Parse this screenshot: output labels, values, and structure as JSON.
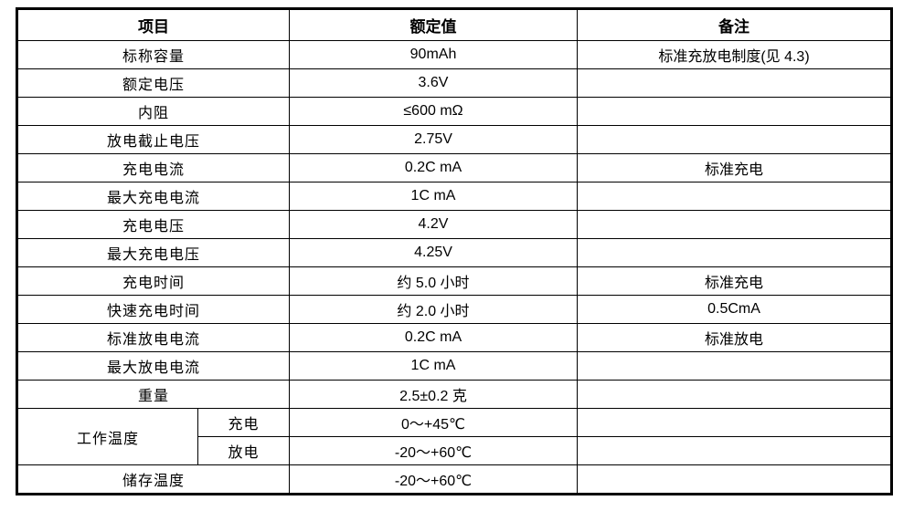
{
  "table": {
    "headers": [
      "项目",
      "额定值",
      "备注"
    ],
    "rows": [
      {
        "item": "标称容量",
        "value": "90mAh",
        "remark": "标准充放电制度(见 4.3)"
      },
      {
        "item": "额定电压",
        "value": "3.6V",
        "remark": ""
      },
      {
        "item": "内阻",
        "value": "≤600 mΩ",
        "remark": ""
      },
      {
        "item": "放电截止电压",
        "value": "2.75V",
        "remark": ""
      },
      {
        "item": "充电电流",
        "value": "0.2C mA",
        "remark": "标准充电"
      },
      {
        "item": "最大充电电流",
        "value": "1C mA",
        "remark": ""
      },
      {
        "item": "充电电压",
        "value": "4.2V",
        "remark": ""
      },
      {
        "item": "最大充电电压",
        "value": "4.25V",
        "remark": ""
      },
      {
        "item": "充电时间",
        "value": "约 5.0 小时",
        "remark": "标准充电"
      },
      {
        "item": "快速充电时间",
        "value": "约 2.0 小时",
        "remark": "0.5CmA"
      },
      {
        "item": "标准放电电流",
        "value": "0.2C mA",
        "remark": "标准放电"
      },
      {
        "item": "最大放电电流",
        "value": "1C mA",
        "remark": ""
      },
      {
        "item": "重量",
        "value": "2.5±0.2 克",
        "remark": ""
      }
    ],
    "temperature_group": {
      "item": "工作温度",
      "sub_rows": [
        {
          "label": "充电",
          "value": "0～+45℃",
          "remark": ""
        },
        {
          "label": "放电",
          "value": "-20～+60℃",
          "remark": ""
        }
      ]
    },
    "storage_row": {
      "item": "储存温度",
      "value": "-20～+60℃",
      "remark": ""
    },
    "colors": {
      "border": "#000000",
      "text": "#000000",
      "background": "#ffffff"
    }
  }
}
